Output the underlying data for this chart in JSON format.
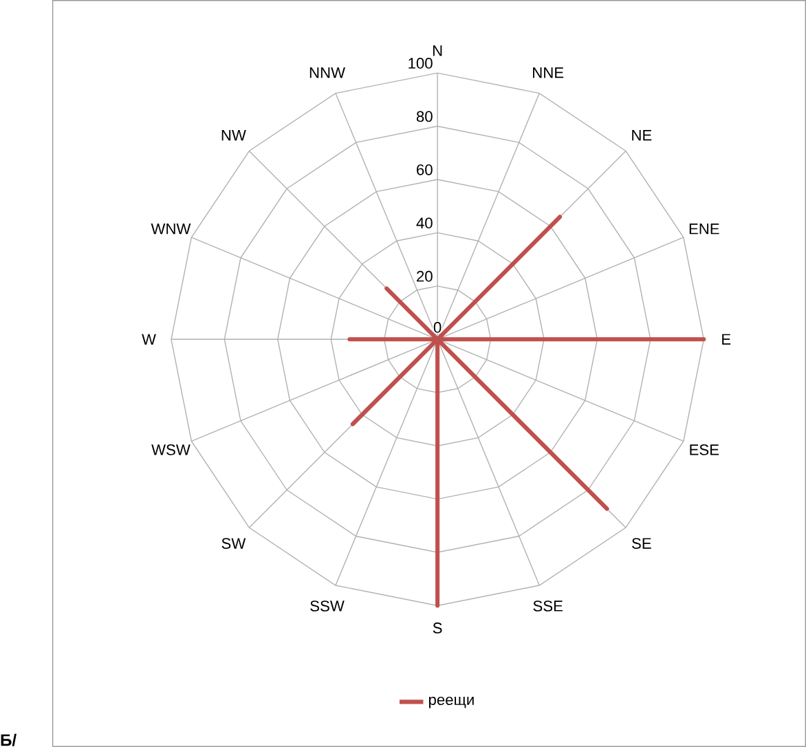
{
  "chart_data": {
    "type": "radar",
    "categories": [
      "N",
      "NNE",
      "NE",
      "ENE",
      "E",
      "ESE",
      "SE",
      "SSE",
      "S",
      "SSW",
      "SW",
      "WSW",
      "W",
      "WNW",
      "NW",
      "NNW"
    ],
    "series": [
      {
        "name": "реещи",
        "color": "#c0504d",
        "values": [
          0,
          0,
          65,
          0,
          100,
          0,
          90,
          0,
          100,
          0,
          45,
          0,
          33,
          0,
          27,
          0
        ]
      }
    ],
    "ylim": [
      0,
      100
    ],
    "yticks": [
      0,
      20,
      40,
      60,
      80,
      100
    ],
    "grid": true,
    "legend": "bottom",
    "annotations": [
      "**Б/**"
    ]
  }
}
